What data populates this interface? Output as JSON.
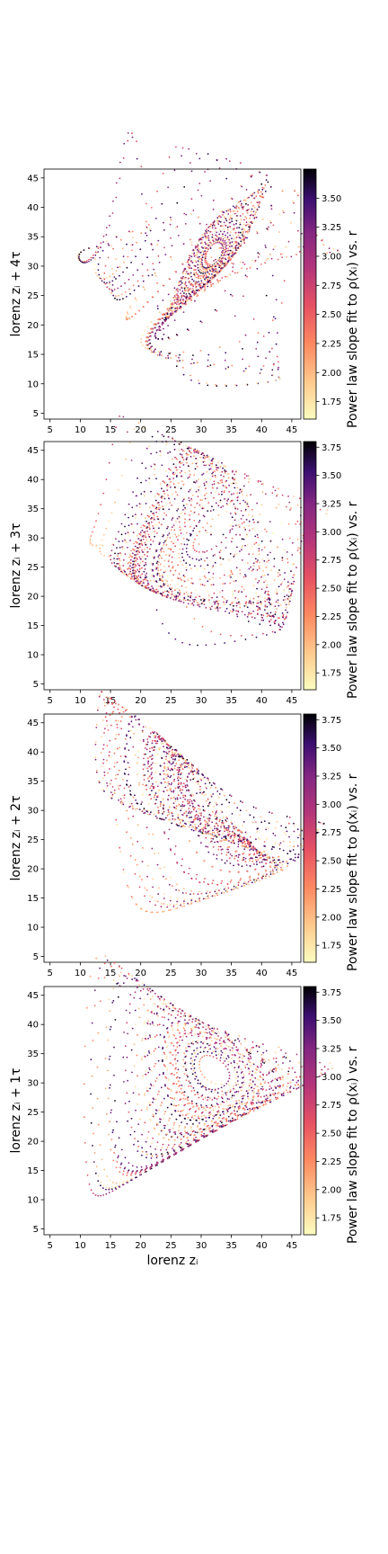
{
  "chart_data": [
    {
      "type": "scatter",
      "ylabel": "lorenz zᵢ + 4τ",
      "xlabel": "",
      "xlim": [
        4,
        46.5
      ],
      "ylim": [
        4,
        46.5
      ],
      "xticks": [
        "5",
        "10",
        "15",
        "20",
        "25",
        "30",
        "35",
        "40",
        "45"
      ],
      "yticks": [
        "5",
        "10",
        "15",
        "20",
        "25",
        "30",
        "35",
        "40",
        "45"
      ],
      "colorbar": {
        "label": "Power law slope fit to ρ(xᵢ) vs. r",
        "ticks": [
          "1.75",
          "2.00",
          "2.25",
          "2.50",
          "2.75",
          "3.00",
          "3.25",
          "3.50"
        ],
        "range": [
          1.6,
          3.75
        ],
        "cmap": "magma_r"
      },
      "series": {
        "seed": 11,
        "shift": 4,
        "count": 1700,
        "note": ""
      }
    },
    {
      "type": "scatter",
      "ylabel": "lorenz zᵢ + 3τ",
      "xlabel": "",
      "xlim": [
        4,
        46.5
      ],
      "ylim": [
        4,
        46.5
      ],
      "xticks": [
        "5",
        "10",
        "15",
        "20",
        "25",
        "30",
        "35",
        "40",
        "45"
      ],
      "yticks": [
        "5",
        "10",
        "15",
        "20",
        "25",
        "30",
        "35",
        "40",
        "45"
      ],
      "colorbar": {
        "label": "Power law slope fit to ρ(xᵢ) vs. r",
        "ticks": [
          "1.75",
          "2.00",
          "2.25",
          "2.50",
          "2.75",
          "3.00",
          "3.25",
          "3.50",
          "3.75"
        ],
        "range": [
          1.6,
          3.8
        ],
        "cmap": "magma_r"
      },
      "series": {
        "seed": 23,
        "shift": 3,
        "count": 1700,
        "note": ""
      }
    },
    {
      "type": "scatter",
      "ylabel": "lorenz zᵢ + 2τ",
      "xlabel": "",
      "xlim": [
        4,
        46.5
      ],
      "ylim": [
        4,
        46.5
      ],
      "xticks": [
        "5",
        "10",
        "15",
        "20",
        "25",
        "30",
        "35",
        "40",
        "45"
      ],
      "yticks": [
        "5",
        "10",
        "15",
        "20",
        "25",
        "30",
        "35",
        "40",
        "45"
      ],
      "colorbar": {
        "label": "Power law slope fit to ρ(xᵢ) vs. r",
        "ticks": [
          "1.75",
          "2.00",
          "2.25",
          "2.50",
          "2.75",
          "3.00",
          "3.25",
          "3.50",
          "3.75"
        ],
        "range": [
          1.6,
          3.8
        ],
        "cmap": "magma_r"
      },
      "series": {
        "seed": 37,
        "shift": 2,
        "count": 1700,
        "note": ""
      }
    },
    {
      "type": "scatter",
      "ylabel": "lorenz zᵢ + 1τ",
      "xlabel": "lorenz zᵢ",
      "xlim": [
        4,
        46.5
      ],
      "ylim": [
        4,
        46.5
      ],
      "xticks": [
        "5",
        "10",
        "15",
        "20",
        "25",
        "30",
        "35",
        "40",
        "45"
      ],
      "yticks": [
        "5",
        "10",
        "15",
        "20",
        "25",
        "30",
        "35",
        "40",
        "45"
      ],
      "colorbar": {
        "label": "Power law slope fit to ρ(xᵢ) vs. r",
        "ticks": [
          "1.75",
          "2.00",
          "2.25",
          "2.50",
          "2.75",
          "3.00",
          "3.25",
          "3.50",
          "3.75"
        ],
        "range": [
          1.6,
          3.8
        ],
        "cmap": "magma_r"
      },
      "series": {
        "seed": 53,
        "shift": 1,
        "count": 1700,
        "note": ""
      }
    }
  ]
}
